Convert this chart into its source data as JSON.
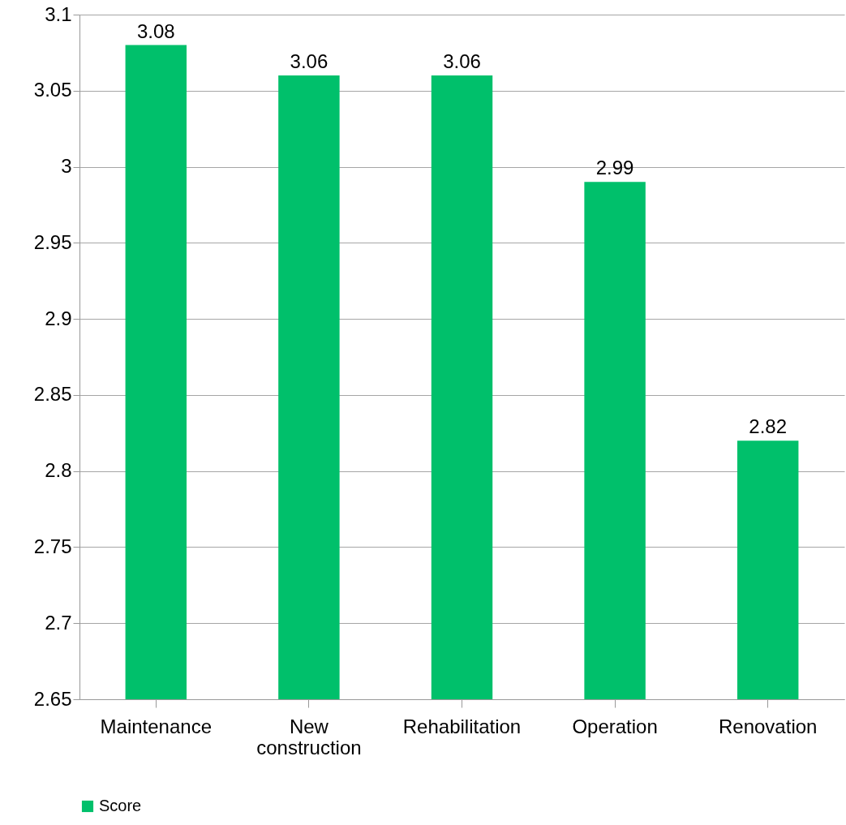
{
  "chart_data": {
    "type": "bar",
    "categories": [
      "Maintenance",
      "New construction",
      "Rehabilitation",
      "Operation",
      "Renovation"
    ],
    "series": [
      {
        "name": "Score",
        "color": "#00c06b",
        "values": [
          3.08,
          3.06,
          3.06,
          2.99,
          2.82
        ]
      }
    ],
    "ylim": [
      2.65,
      3.1
    ],
    "yticks": [
      2.65,
      2.7,
      2.75,
      2.8,
      2.85,
      2.9,
      2.95,
      3,
      3.05,
      3.1
    ],
    "grid": "y",
    "legend": "bottom",
    "data_labels": true
  }
}
